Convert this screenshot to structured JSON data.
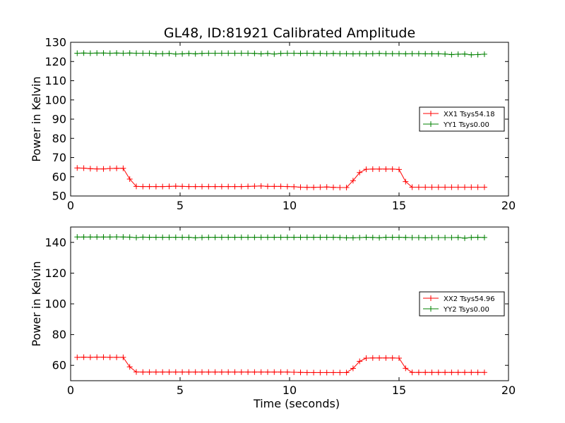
{
  "figure_title": "GL48, ID:81921 Calibrated Amplitude",
  "chart_data": [
    {
      "type": "line",
      "title": "GL48, ID:81921 Calibrated Amplitude",
      "xlabel": "",
      "ylabel": "Power in Kelvin",
      "xlim": [
        0,
        20
      ],
      "ylim": [
        50,
        130
      ],
      "xticks": [
        "0",
        "5",
        "10",
        "15",
        "20"
      ],
      "yticks": [
        "50",
        "60",
        "70",
        "80",
        "90",
        "100",
        "110",
        "120",
        "130"
      ],
      "legend_position": "right",
      "grid": false,
      "series": [
        {
          "name": "XX1 Tsys54.18",
          "color": "#ff0000",
          "x": [
            0.3,
            0.6,
            0.9,
            1.2,
            1.5,
            1.8,
            2.1,
            2.4,
            2.7,
            3.0,
            3.3,
            3.6,
            3.9,
            4.2,
            4.5,
            4.8,
            5.1,
            5.4,
            5.7,
            6.0,
            6.3,
            6.6,
            6.9,
            7.2,
            7.5,
            7.8,
            8.1,
            8.4,
            8.7,
            9.0,
            9.3,
            9.6,
            9.9,
            10.2,
            10.5,
            10.8,
            11.1,
            11.4,
            11.7,
            12.0,
            12.3,
            12.6,
            12.9,
            13.2,
            13.5,
            13.8,
            14.1,
            14.4,
            14.7,
            15.0,
            15.3,
            15.6,
            15.9,
            16.2,
            16.5,
            16.8,
            17.1,
            17.4,
            17.7,
            18.0,
            18.3,
            18.6,
            18.9
          ],
          "values": [
            64.6,
            64.5,
            64.2,
            64.1,
            64.1,
            64.3,
            64.4,
            64.4,
            58.8,
            55.0,
            54.9,
            54.9,
            54.9,
            54.9,
            55.0,
            55.1,
            55.0,
            54.9,
            54.9,
            54.9,
            54.9,
            54.9,
            54.9,
            54.9,
            54.9,
            54.9,
            55.0,
            55.1,
            55.2,
            55.0,
            55.0,
            55.0,
            54.9,
            54.8,
            54.6,
            54.5,
            54.5,
            54.6,
            54.7,
            54.5,
            54.4,
            54.4,
            58.0,
            62.2,
            63.9,
            64.0,
            64.0,
            64.0,
            64.0,
            63.8,
            57.5,
            54.6,
            54.6,
            54.6,
            54.6,
            54.6,
            54.6,
            54.6,
            54.6,
            54.6,
            54.6,
            54.6,
            54.6
          ]
        },
        {
          "name": "YY1 Tsys0.00",
          "color": "#008000",
          "x": [
            0.3,
            0.6,
            0.9,
            1.2,
            1.5,
            1.8,
            2.1,
            2.4,
            2.7,
            3.0,
            3.3,
            3.6,
            3.9,
            4.2,
            4.5,
            4.8,
            5.1,
            5.4,
            5.7,
            6.0,
            6.3,
            6.6,
            6.9,
            7.2,
            7.5,
            7.8,
            8.1,
            8.4,
            8.7,
            9.0,
            9.3,
            9.6,
            9.9,
            10.2,
            10.5,
            10.8,
            11.1,
            11.4,
            11.7,
            12.0,
            12.3,
            12.6,
            12.9,
            13.2,
            13.5,
            13.8,
            14.1,
            14.4,
            14.7,
            15.0,
            15.3,
            15.6,
            15.9,
            16.2,
            16.5,
            16.8,
            17.1,
            17.4,
            17.7,
            18.0,
            18.3,
            18.6,
            18.9
          ],
          "values": [
            124.3,
            124.4,
            124.3,
            124.4,
            124.4,
            124.3,
            124.4,
            124.3,
            124.4,
            124.3,
            124.3,
            124.3,
            124.0,
            124.1,
            124.2,
            123.9,
            124.0,
            124.2,
            124.0,
            124.2,
            124.3,
            124.3,
            124.3,
            124.3,
            124.3,
            124.3,
            124.3,
            124.2,
            124.0,
            124.2,
            123.9,
            124.2,
            124.3,
            124.3,
            124.2,
            124.3,
            124.2,
            124.2,
            124.1,
            124.2,
            124.1,
            124.1,
            124.0,
            124.1,
            124.0,
            124.1,
            124.2,
            124.1,
            124.1,
            124.1,
            124.0,
            124.1,
            124.1,
            124.0,
            124.0,
            124.0,
            123.9,
            123.6,
            123.8,
            123.9,
            123.5,
            123.6,
            123.8
          ]
        }
      ]
    },
    {
      "type": "line",
      "title": "",
      "xlabel": "Time (seconds)",
      "ylabel": "Power in Kelvin",
      "xlim": [
        0,
        20
      ],
      "ylim": [
        50,
        150
      ],
      "xticks": [
        "0",
        "5",
        "10",
        "15",
        "20"
      ],
      "yticks": [
        "60",
        "80",
        "100",
        "120",
        "140"
      ],
      "legend_position": "right",
      "grid": false,
      "series": [
        {
          "name": "XX2 Tsys54.96",
          "color": "#ff0000",
          "x": [
            0.3,
            0.6,
            0.9,
            1.2,
            1.5,
            1.8,
            2.1,
            2.4,
            2.7,
            3.0,
            3.3,
            3.6,
            3.9,
            4.2,
            4.5,
            4.8,
            5.1,
            5.4,
            5.7,
            6.0,
            6.3,
            6.6,
            6.9,
            7.2,
            7.5,
            7.8,
            8.1,
            8.4,
            8.7,
            9.0,
            9.3,
            9.6,
            9.9,
            10.2,
            10.5,
            10.8,
            11.1,
            11.4,
            11.7,
            12.0,
            12.3,
            12.6,
            12.9,
            13.2,
            13.5,
            13.8,
            14.1,
            14.4,
            14.7,
            15.0,
            15.3,
            15.6,
            15.9,
            16.2,
            16.5,
            16.8,
            17.1,
            17.4,
            17.7,
            18.0,
            18.3,
            18.6,
            18.9
          ],
          "values": [
            65.2,
            65.3,
            65.2,
            65.3,
            65.3,
            65.2,
            65.2,
            65.2,
            59.0,
            55.7,
            55.6,
            55.6,
            55.6,
            55.6,
            55.6,
            55.6,
            55.6,
            55.6,
            55.6,
            55.6,
            55.6,
            55.6,
            55.6,
            55.6,
            55.6,
            55.6,
            55.6,
            55.6,
            55.6,
            55.6,
            55.6,
            55.6,
            55.6,
            55.5,
            55.4,
            55.3,
            55.3,
            55.3,
            55.3,
            55.3,
            55.3,
            55.3,
            58.0,
            62.6,
            64.7,
            64.8,
            64.8,
            64.8,
            64.8,
            64.7,
            58.1,
            55.4,
            55.4,
            55.4,
            55.4,
            55.4,
            55.4,
            55.4,
            55.4,
            55.4,
            55.4,
            55.4,
            55.4
          ]
        },
        {
          "name": "YY2 Tsys0.00",
          "color": "#008000",
          "x": [
            0.3,
            0.6,
            0.9,
            1.2,
            1.5,
            1.8,
            2.1,
            2.4,
            2.7,
            3.0,
            3.3,
            3.6,
            3.9,
            4.2,
            4.5,
            4.8,
            5.1,
            5.4,
            5.7,
            6.0,
            6.3,
            6.6,
            6.9,
            7.2,
            7.5,
            7.8,
            8.1,
            8.4,
            8.7,
            9.0,
            9.3,
            9.6,
            9.9,
            10.2,
            10.5,
            10.8,
            11.1,
            11.4,
            11.7,
            12.0,
            12.3,
            12.6,
            12.9,
            13.2,
            13.5,
            13.8,
            14.1,
            14.4,
            14.7,
            15.0,
            15.3,
            15.6,
            15.9,
            16.2,
            16.5,
            16.8,
            17.1,
            17.4,
            17.7,
            18.0,
            18.3,
            18.6,
            18.9
          ],
          "values": [
            143.5,
            143.5,
            143.5,
            143.5,
            143.5,
            143.5,
            143.6,
            143.5,
            143.4,
            143.1,
            143.4,
            143.3,
            143.3,
            143.3,
            143.3,
            143.3,
            143.3,
            143.3,
            143.0,
            143.2,
            143.3,
            143.3,
            143.3,
            143.3,
            143.3,
            143.3,
            143.3,
            143.3,
            143.3,
            143.3,
            143.3,
            143.3,
            143.3,
            143.3,
            143.3,
            143.3,
            143.3,
            143.3,
            143.3,
            143.3,
            143.2,
            143.0,
            143.0,
            143.1,
            143.3,
            143.2,
            143.0,
            143.3,
            143.3,
            143.3,
            143.2,
            143.1,
            143.1,
            143.0,
            143.1,
            143.1,
            143.1,
            143.1,
            143.2,
            142.8,
            143.2,
            143.3,
            143.2
          ]
        }
      ]
    }
  ]
}
